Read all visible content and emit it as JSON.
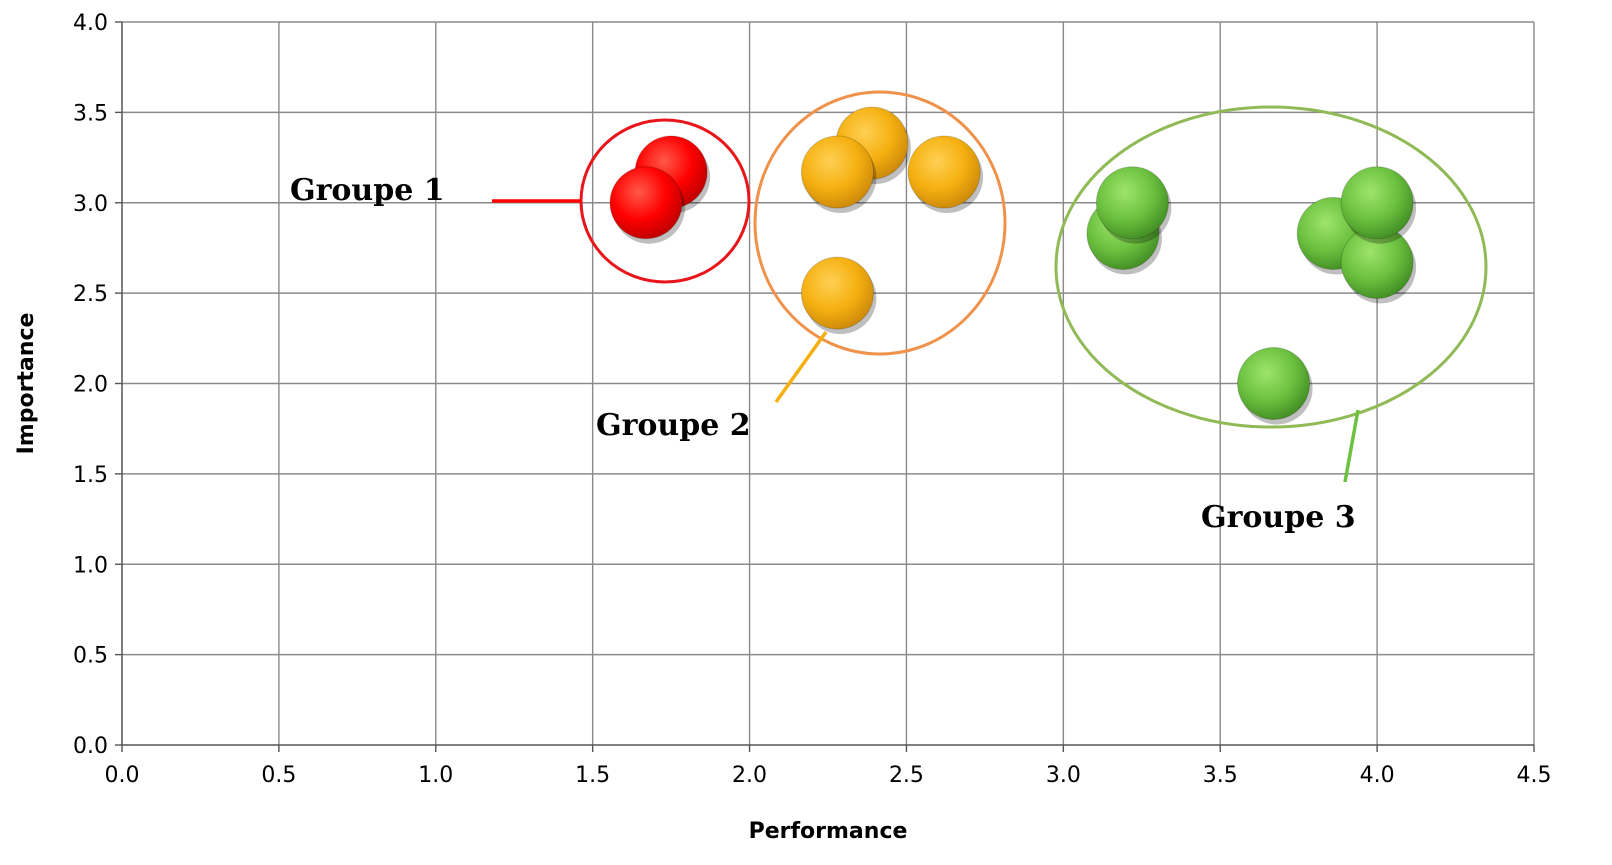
{
  "chart_data": {
    "type": "scatter",
    "title": "",
    "xlabel": "Performance",
    "ylabel": "Importance",
    "xlim": [
      0,
      4.5
    ],
    "ylim": [
      0,
      4.0
    ],
    "x_ticks": [
      "0.0",
      "0.5",
      "1.0",
      "1.5",
      "2.0",
      "2.5",
      "3.0",
      "3.5",
      "4.0",
      "4.5"
    ],
    "y_ticks": [
      "0.0",
      "0.5",
      "1.0",
      "1.5",
      "2.0",
      "2.5",
      "3.0",
      "3.5",
      "4.0"
    ],
    "grid": true,
    "legend": "none",
    "groups": [
      {
        "name": "Groupe 1",
        "color": "#ff0000",
        "outline_color": "#e8161b",
        "points": [
          {
            "x": 1.75,
            "y": 3.17
          },
          {
            "x": 1.67,
            "y": 3.0
          }
        ]
      },
      {
        "name": "Groupe 2",
        "color": "#f5b010",
        "outline_color": "#f0924a",
        "points": [
          {
            "x": 2.39,
            "y": 3.33
          },
          {
            "x": 2.28,
            "y": 3.17
          },
          {
            "x": 2.62,
            "y": 3.17
          },
          {
            "x": 2.28,
            "y": 2.5
          }
        ]
      },
      {
        "name": "Groupe 3",
        "color": "#6cc13f",
        "outline_color": "#8fba55",
        "points": [
          {
            "x": 3.19,
            "y": 2.83
          },
          {
            "x": 3.22,
            "y": 3.0
          },
          {
            "x": 3.86,
            "y": 2.83
          },
          {
            "x": 4.0,
            "y": 2.67
          },
          {
            "x": 4.0,
            "y": 3.0
          },
          {
            "x": 3.67,
            "y": 2.0
          }
        ]
      }
    ]
  }
}
